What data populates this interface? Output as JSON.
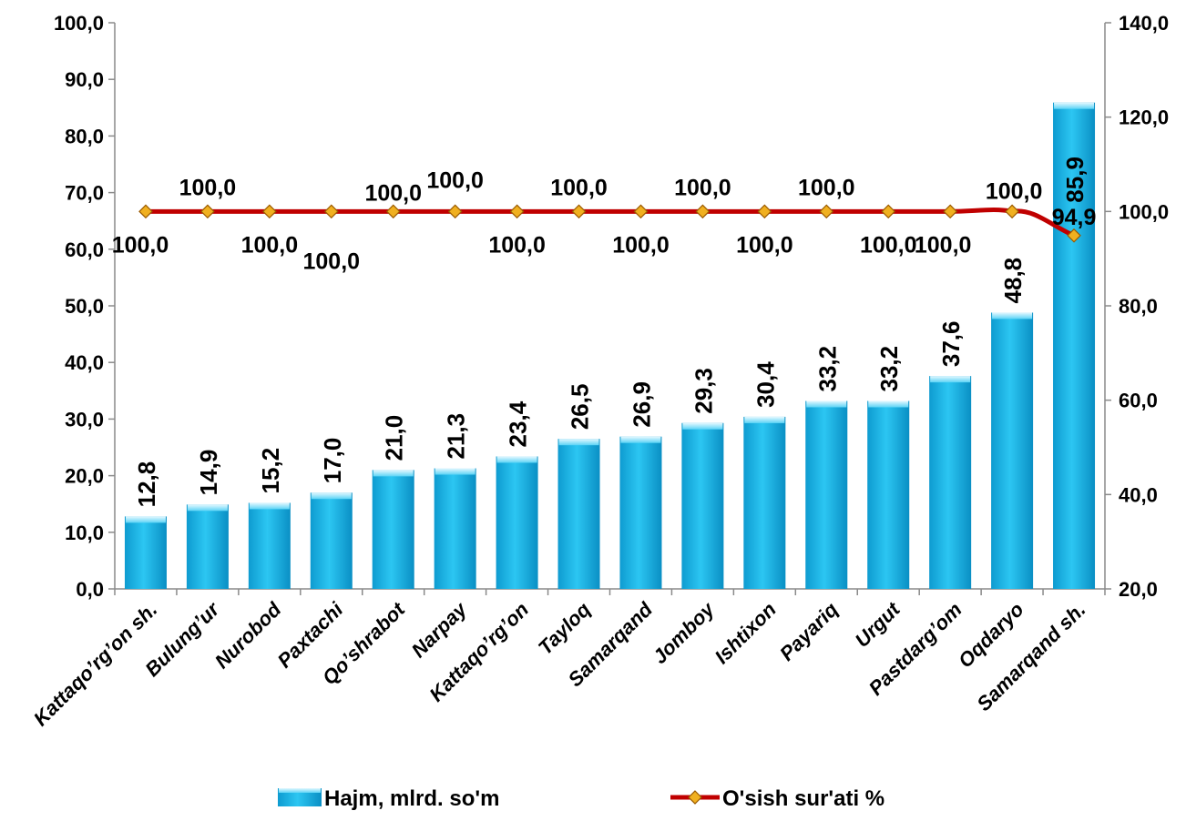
{
  "chart_data": {
    "type": "bar",
    "categories": [
      "Kattaqo’rg’on sh.",
      "Bulung’ur",
      "Nurobod",
      "Paxtachi",
      "Qo’shrabot",
      "Narpay",
      "Kattaqo’rg’on",
      "Tayloq",
      "Samarqand",
      "Jomboy",
      "Ishtixon",
      "Payariq",
      "Urgut",
      "Pastdarg’om",
      "Oqdaryo",
      "Samarqand sh."
    ],
    "series": [
      {
        "name": "Hajm, mlrd. so'm",
        "type": "bar",
        "axis": "left",
        "color": "#1AB8E8",
        "values": [
          12.8,
          14.9,
          15.2,
          17.0,
          21.0,
          21.3,
          23.4,
          26.5,
          26.9,
          29.3,
          30.4,
          33.2,
          33.2,
          37.6,
          48.8,
          85.9
        ],
        "labels": [
          "12,8",
          "14,9",
          "15,2",
          "17,0",
          "21,0",
          "21,3",
          "23,4",
          "26,5",
          "26,9",
          "29,3",
          "30,4",
          "33,2",
          "33,2",
          "37,6",
          "48,8",
          "85,9"
        ]
      },
      {
        "name": "O'sish sur'ati %",
        "type": "line",
        "axis": "right",
        "color": "#C00000",
        "marker_color": "#F0B020",
        "values": [
          100.0,
          100.0,
          100.0,
          100.0,
          100.0,
          100.0,
          100.0,
          100.0,
          100.0,
          100.0,
          100.0,
          100.0,
          100.0,
          100.0,
          100.0,
          94.9
        ],
        "labels": [
          "100,0",
          "100,0",
          "100,0",
          "100,0",
          "100,0",
          "100,0",
          "100,0",
          "100,0",
          "100,0",
          "100,0",
          "100,0",
          "100,0",
          "100,0",
          "100,0",
          "100,0",
          "94,9"
        ],
        "label_above": [
          false,
          true,
          false,
          false,
          true,
          true,
          false,
          true,
          false,
          true,
          false,
          true,
          false,
          false,
          true,
          true
        ]
      }
    ],
    "y_left": {
      "min": 0,
      "max": 100,
      "step": 10,
      "tick_labels": [
        "0,0",
        "10,0",
        "20,0",
        "30,0",
        "40,0",
        "50,0",
        "60,0",
        "70,0",
        "80,0",
        "90,0",
        "100,0"
      ]
    },
    "y_right": {
      "min": 20,
      "max": 140,
      "step": 20,
      "tick_labels": [
        "20,0",
        "40,0",
        "60,0",
        "80,0",
        "100,0",
        "120,0",
        "140,0"
      ]
    },
    "grid": false,
    "legend_position": "bottom"
  }
}
